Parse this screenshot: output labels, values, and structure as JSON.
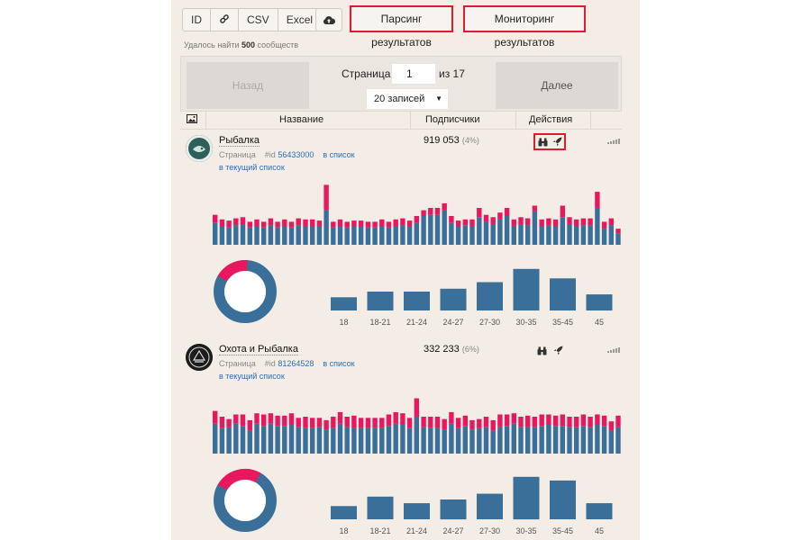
{
  "toolbar": {
    "export_buttons": [
      "ID",
      "",
      "CSV",
      "Excel"
    ],
    "parse_results": "Парсинг результатов",
    "monitor_results": "Мониторинг результатов"
  },
  "found": {
    "prefix": "Удалось найти",
    "count": "500",
    "suffix": "сообществ"
  },
  "pager": {
    "prev": "Назад",
    "next": "Далее",
    "page_label": "Страница",
    "page_value": "1",
    "of_label": "из 17",
    "per_page": "20 записей"
  },
  "table": {
    "columns": {
      "name": "Название",
      "subs": "Подписчики",
      "actions": "Действия"
    }
  },
  "colors": {
    "male": "#3a6f99",
    "female": "#e8185f",
    "highlight": "#e01b2f"
  },
  "rows": [
    {
      "name": "Рыбалка",
      "type": "Страница",
      "id_label": "#id",
      "id": "56433000",
      "add_list": "в список",
      "current_list": "в текущий список",
      "subscribers": "919 053",
      "percent": "(4%)",
      "gender_female_share": 0.18,
      "activity": {
        "blue": [
          19,
          16,
          15,
          17,
          18,
          15,
          16,
          15,
          17,
          15,
          16,
          15,
          17,
          16,
          16,
          16,
          30,
          15,
          16,
          15,
          16,
          16,
          15,
          15,
          16,
          15,
          16,
          17,
          16,
          19,
          25,
          26,
          26,
          30,
          19,
          16,
          17,
          16,
          24,
          20,
          18,
          22,
          25,
          16,
          18,
          17,
          29,
          16,
          17,
          16,
          24,
          18,
          16,
          17,
          17,
          32,
          14,
          17,
          10
        ],
        "pink": [
          7,
          6,
          6,
          6,
          6,
          5,
          6,
          5,
          6,
          5,
          6,
          5,
          6,
          6,
          6,
          5,
          22,
          5,
          6,
          5,
          5,
          5,
          5,
          5,
          6,
          5,
          6,
          6,
          5,
          6,
          5,
          6,
          6,
          6,
          6,
          5,
          5,
          6,
          8,
          6,
          6,
          6,
          7,
          6,
          6,
          6,
          5,
          6,
          6,
          6,
          10,
          6,
          6,
          6,
          6,
          14,
          6,
          6,
          4
        ]
      },
      "ages": {
        "labels": [
          "18",
          "18-21",
          "21-24",
          "24-27",
          "27-30",
          "30-35",
          "35-45",
          "45"
        ],
        "values": [
          14,
          20,
          20,
          23,
          30,
          44,
          34,
          17
        ]
      }
    },
    {
      "name": "Охота и Рыбалка",
      "type": "Страница",
      "id_label": "#id",
      "id": "81264528",
      "add_list": "в список",
      "current_list": "в текущий список",
      "subscribers": "332 233",
      "percent": "(6%)",
      "gender_female_share": 0.25,
      "activity": {
        "blue": [
          26,
          22,
          23,
          26,
          24,
          20,
          26,
          24,
          26,
          24,
          24,
          25,
          23,
          22,
          22,
          23,
          21,
          22,
          26,
          23,
          22,
          22,
          22,
          22,
          22,
          24,
          26,
          25,
          22,
          32,
          23,
          22,
          22,
          21,
          26,
          22,
          24,
          21,
          22,
          23,
          20,
          23,
          24,
          26,
          23,
          23,
          23,
          24,
          25,
          24,
          24,
          23,
          23,
          24,
          23,
          25,
          24,
          20,
          23
        ],
        "pink": [
          11,
          10,
          7,
          8,
          10,
          9,
          9,
          10,
          9,
          9,
          9,
          10,
          8,
          10,
          9,
          8,
          8,
          10,
          10,
          9,
          11,
          9,
          9,
          9,
          9,
          10,
          10,
          10,
          9,
          16,
          9,
          10,
          10,
          9,
          10,
          9,
          9,
          8,
          8,
          9,
          9,
          11,
          10,
          9,
          9,
          10,
          9,
          10,
          9,
          9,
          10,
          9,
          9,
          10,
          9,
          9,
          9,
          8,
          10
        ]
      },
      "ages": {
        "labels": [
          "18",
          "18-21",
          "21-24",
          "24-27",
          "27-30",
          "30-35",
          "35-45",
          "45"
        ],
        "values": [
          14,
          24,
          17,
          21,
          27,
          45,
          41,
          17
        ]
      }
    }
  ]
}
